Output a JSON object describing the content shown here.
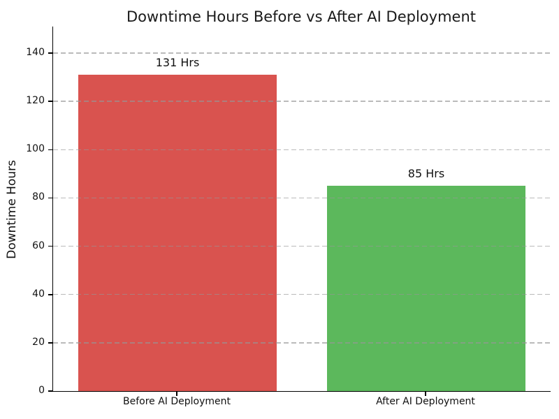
{
  "chart_data": {
    "type": "bar",
    "title": "Downtime Hours Before vs After AI Deployment",
    "ylabel": "Downtime Hours",
    "xlabel": "",
    "categories": [
      "Before AI Deployment",
      "After AI Deployment"
    ],
    "values": [
      131,
      85
    ],
    "value_labels": [
      "131 Hrs",
      "85 Hrs"
    ],
    "bar_colors": [
      "#d9534f",
      "#5cb85c"
    ],
    "yticks": [
      0,
      20,
      40,
      60,
      80,
      100,
      120,
      140
    ],
    "ylim": [
      0,
      151
    ],
    "xlim": [
      -0.5,
      1.5
    ],
    "bar_width_units": 0.8,
    "grid": "horizontal-dashed-over-bars",
    "gridline_color": "#a0a0a0",
    "legend": "none",
    "background_color": "#ffffff",
    "spines": [
      "left",
      "bottom"
    ]
  }
}
